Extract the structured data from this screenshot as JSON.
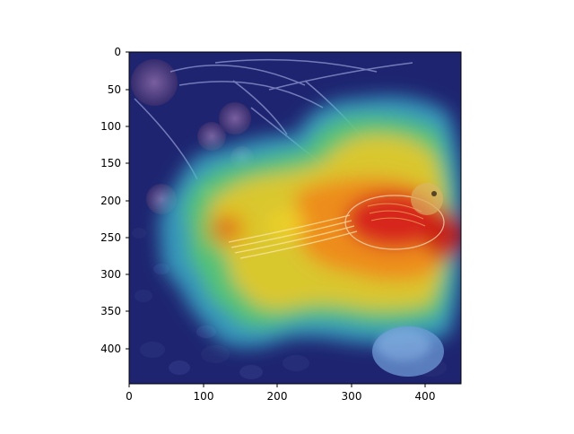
{
  "figure": {
    "description_kind": "image-with-heatmap-overlay",
    "overlay_colormap": "jet",
    "axes": {
      "x_ticks": [
        "0",
        "100",
        "200",
        "300",
        "400"
      ],
      "y_ticks": [
        "0",
        "50",
        "100",
        "150",
        "200",
        "250",
        "300",
        "350",
        "400"
      ],
      "x_range": [
        0,
        448
      ],
      "y_range": [
        0,
        448
      ]
    },
    "colors": {
      "background_dark": "#1e2470",
      "hot": "#d6221a",
      "warm": "#e8b81c",
      "mid": "#58c96a",
      "cool": "#3cbcd4"
    }
  }
}
